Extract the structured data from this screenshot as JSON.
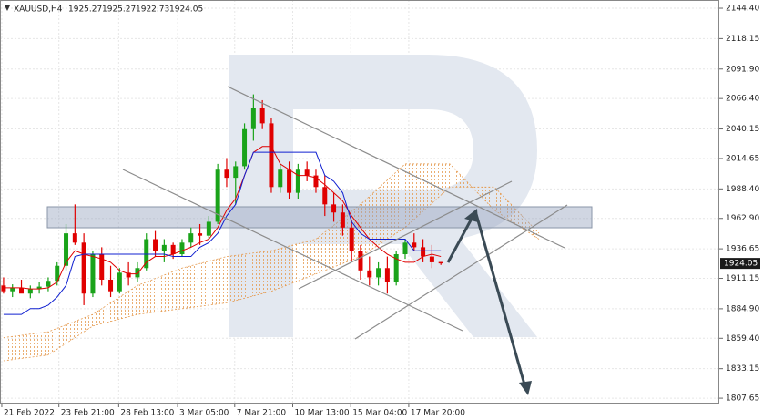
{
  "chart_data": {
    "type": "candlestick",
    "symbol": "XAUUSD,H4",
    "header_ohlc": [
      1925.27,
      1925.27,
      1922.73,
      1924.05
    ],
    "current_price": 1924.05,
    "x": [
      0,
      1,
      2,
      3,
      4,
      5,
      6,
      7,
      8,
      9,
      10,
      11,
      12,
      13,
      14,
      15,
      16,
      17,
      18,
      19,
      20,
      21,
      22,
      23,
      24,
      25,
      26,
      27,
      28,
      29,
      30,
      31,
      32,
      33,
      34,
      35,
      36,
      37,
      38,
      39,
      40,
      41,
      42,
      43,
      44,
      45,
      46,
      47,
      48,
      49
    ],
    "open": [
      1905,
      1900,
      1903,
      1898,
      1902,
      1904,
      1909,
      1922,
      1950,
      1942,
      1898,
      1932,
      1910,
      1900,
      1916,
      1912,
      1920,
      1945,
      1935,
      1940,
      1932,
      1942,
      1950,
      1948,
      1960,
      2005,
      1998,
      2008,
      2040,
      2058,
      2045,
      1990,
      2005,
      1985,
      2005,
      2000,
      1990,
      1975,
      1968,
      1955,
      1935,
      1918,
      1912,
      1920,
      1908,
      1932,
      1942,
      1938,
      1930,
      1925.27
    ],
    "high": [
      1912,
      1906,
      1910,
      1905,
      1908,
      1912,
      1925,
      1958,
      1975,
      1950,
      1935,
      1938,
      1922,
      1920,
      1925,
      1925,
      1950,
      1952,
      1945,
      1942,
      1945,
      1955,
      1958,
      1965,
      2010,
      2015,
      2012,
      2045,
      2070,
      2065,
      2050,
      2010,
      2012,
      2010,
      2012,
      2005,
      2000,
      1985,
      1975,
      1962,
      1940,
      1930,
      1925,
      1930,
      1935,
      1945,
      1950,
      1945,
      1940,
      1925.27
    ],
    "low": [
      1898,
      1895,
      1899,
      1894,
      1898,
      1900,
      1905,
      1918,
      1940,
      1888,
      1895,
      1905,
      1895,
      1898,
      1905,
      1908,
      1918,
      1930,
      1925,
      1928,
      1930,
      1938,
      1940,
      1945,
      1958,
      1990,
      1975,
      2005,
      2030,
      2040,
      1985,
      1985,
      1980,
      1980,
      1995,
      1985,
      1965,
      1960,
      1948,
      1925,
      1910,
      1905,
      1905,
      1898,
      1905,
      1928,
      1935,
      1925,
      1920,
      1922.73
    ],
    "close": [
      1900,
      1903,
      1898,
      1902,
      1904,
      1909,
      1922,
      1950,
      1942,
      1898,
      1932,
      1910,
      1900,
      1916,
      1912,
      1920,
      1945,
      1935,
      1940,
      1932,
      1942,
      1950,
      1948,
      1960,
      2005,
      1998,
      2008,
      2040,
      2058,
      2045,
      1990,
      2005,
      1985,
      2005,
      2000,
      1990,
      1975,
      1968,
      1955,
      1935,
      1918,
      1912,
      1920,
      1908,
      1932,
      1942,
      1938,
      1930,
      1925,
      1924.05
    ],
    "up_color": "#1aa31a",
    "down_color": "#e00000",
    "lines": [
      {
        "color": "#e00000",
        "values": [
          1903,
          1903,
          1903,
          1902,
          1902,
          1903,
          1908,
          1925,
          1935,
          1932,
          1930,
          1928,
          1925,
          1918,
          1915,
          1915,
          1925,
          1930,
          1930,
          1932,
          1935,
          1938,
          1942,
          1945,
          1955,
          1970,
          1980,
          2000,
          2020,
          2025,
          2025,
          2010,
          2005,
          2000,
          2000,
          1998,
          1992,
          1985,
          1978,
          1965,
          1955,
          1945,
          1938,
          1932,
          1928,
          1925,
          1925,
          1930,
          1932,
          1930
        ]
      },
      {
        "color": "#1020d0",
        "values": [
          1880,
          1880,
          1880,
          1885,
          1885,
          1888,
          1895,
          1905,
          1930,
          1932,
          1932,
          1932,
          1932,
          1932,
          1932,
          1932,
          1932,
          1932,
          1932,
          1930,
          1930,
          1930,
          1938,
          1942,
          1950,
          1965,
          1975,
          2000,
          2020,
          2020,
          2020,
          2020,
          2020,
          2020,
          2020,
          2020,
          2000,
          1995,
          1985,
          1960,
          1950,
          1945,
          1945,
          1945,
          1945,
          1945,
          1935,
          1935,
          1935,
          1935
        ]
      }
    ],
    "cloud": {
      "color": "#e59a4f",
      "x": [
        0,
        5,
        10,
        15,
        20,
        25,
        30,
        35,
        40,
        45,
        50,
        55,
        60
      ],
      "span_a": [
        1860,
        1865,
        1880,
        1905,
        1920,
        1930,
        1935,
        1945,
        1975,
        2010,
        2010,
        1970,
        1945
      ],
      "span_b": [
        1840,
        1845,
        1870,
        1880,
        1885,
        1890,
        1900,
        1915,
        1930,
        1955,
        1990,
        1990,
        1950
      ]
    },
    "xlim": [
      -0.4,
      80.2
    ],
    "xticks": [
      {
        "value": -0.2,
        "label": "21 Feb 2022"
      },
      {
        "value": 6.2,
        "label": "23 Feb 21:00"
      },
      {
        "value": 12.9,
        "label": "28 Feb 13:00"
      },
      {
        "value": 19.5,
        "label": "3 Mar 05:00"
      },
      {
        "value": 25.9,
        "label": "7 Mar 21:00"
      },
      {
        "value": 32.4,
        "label": "10 Mar 13:00"
      },
      {
        "value": 38.9,
        "label": "15 Mar 04:00"
      },
      {
        "value": 45.4,
        "label": "17 Mar 20:00"
      }
    ],
    "ylim": [
      1803,
      2151.5
    ],
    "yticks": [
      {
        "value": 2144.4,
        "label": "2144.40"
      },
      {
        "value": 2118.15,
        "label": "2118.15"
      },
      {
        "value": 2091.9,
        "label": "2091.90"
      },
      {
        "value": 2066.4,
        "label": "2066.40"
      },
      {
        "value": 2040.15,
        "label": "2040.15"
      },
      {
        "value": 2014.65,
        "label": "2014.65"
      },
      {
        "value": 1988.4,
        "label": "1988.40"
      },
      {
        "value": 1962.9,
        "label": "1962.90"
      },
      {
        "value": 1936.65,
        "label": "1936.65"
      },
      {
        "value": 1911.15,
        "label": "1911.15"
      },
      {
        "value": 1884.9,
        "label": "1884.90"
      },
      {
        "value": 1859.4,
        "label": "1859.40"
      },
      {
        "value": 1833.15,
        "label": "1833.15"
      },
      {
        "value": 1807.65,
        "label": "1807.65"
      }
    ],
    "grid": true
  }
}
